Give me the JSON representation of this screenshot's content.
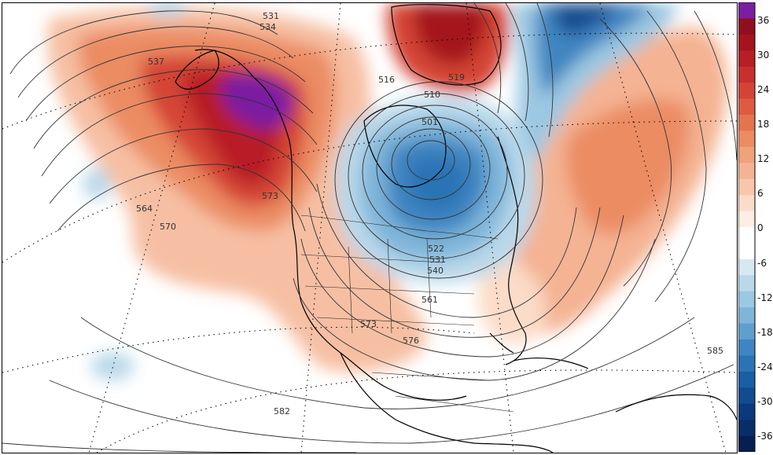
{
  "map": {
    "contour_labels": [
      {
        "id": "c531a",
        "text": "531"
      },
      {
        "id": "c534",
        "text": "534"
      },
      {
        "id": "c537",
        "text": "537"
      },
      {
        "id": "c564",
        "text": "564"
      },
      {
        "id": "c570",
        "text": "570"
      },
      {
        "id": "c573a",
        "text": "573"
      },
      {
        "id": "c516",
        "text": "516"
      },
      {
        "id": "c519",
        "text": "519"
      },
      {
        "id": "c510",
        "text": "510"
      },
      {
        "id": "c501",
        "text": "501"
      },
      {
        "id": "c522",
        "text": "522"
      },
      {
        "id": "c531b",
        "text": "531"
      },
      {
        "id": "c540",
        "text": "540"
      },
      {
        "id": "c561",
        "text": "561"
      },
      {
        "id": "c573b",
        "text": "573"
      },
      {
        "id": "c576",
        "text": "576"
      },
      {
        "id": "c582",
        "text": "582"
      },
      {
        "id": "c585",
        "text": "585"
      }
    ],
    "colors": {
      "purple": "#7b1fa2",
      "dark_red": "#a5141e",
      "red": "#cf3a35",
      "orange_red": "#e4744f",
      "light_orange": "#f4b393",
      "pale": "#fbdcc8",
      "blue_pale": "#b9d8ea",
      "blue_light": "#7fb5d9",
      "blue": "#3f85c1",
      "blue_dark": "#1a5ea5",
      "navy": "#0b2f6b"
    }
  },
  "colorbar": {
    "ticks": [
      "36",
      "30",
      "24",
      "18",
      "12",
      "6",
      "0",
      "-6",
      "-12",
      "-18",
      "-24",
      "-30",
      "-36"
    ],
    "steps": [
      "#7b1fa2",
      "#8f0f1e",
      "#a5141e",
      "#b81e26",
      "#c92f2f",
      "#d44436",
      "#dd5b42",
      "#e4744f",
      "#eb8c63",
      "#f0a27a",
      "#f4b393",
      "#f8c6ab",
      "#fbdcc8",
      "#fdeee3",
      "#ffffff",
      "#ffffff",
      "#d6e8f2",
      "#b9d8ea",
      "#9bc8e2",
      "#7fb5d9",
      "#5f9fcd",
      "#3f85c1",
      "#2b73b5",
      "#1a5ea5",
      "#124b8f",
      "#0b3a7c",
      "#082e68",
      "#061f52"
    ]
  }
}
